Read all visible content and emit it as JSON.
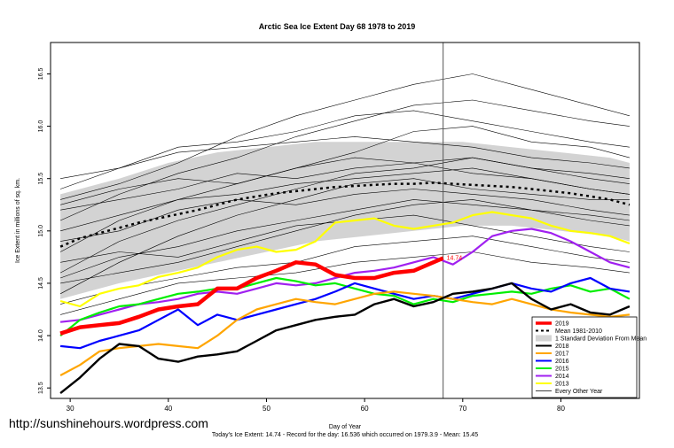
{
  "watermark": "http://sunshinehours.wordpress.com",
  "chart_data": {
    "type": "line",
    "title": "Arctic Sea Ice Extent Day 68 1978 to 2019",
    "xlabel": "Day of Year",
    "ylabel": "Ice Extent in millions of sq. km.",
    "footer": "Today's Ice Extent: 14.74  - Record for the day: 16.536 which occurred on 1979.3.9  - Mean: 15.45",
    "xlim": [
      28,
      88
    ],
    "ylim": [
      13.4,
      16.8
    ],
    "xticks": [
      30,
      40,
      50,
      60,
      70,
      80
    ],
    "yticks": [
      13.5,
      14.0,
      14.5,
      15.0,
      15.5,
      16.0,
      16.5
    ],
    "vline_day": 68,
    "current_label": "14.74",
    "colors": {
      "2019": "#ff0000",
      "mean": "#000000",
      "band": "#d3d3d3",
      "2018": "#000000",
      "2017": "#ffa500",
      "2016": "#0000ff",
      "2015": "#00ee00",
      "2014": "#a020f0",
      "2013": "#ffff00",
      "other": "#000000"
    },
    "legend": {
      "position": "bottom-right",
      "entries": [
        "2019",
        "Mean 1981-2010",
        "1 Standard Deviation From Mean",
        "2018",
        "2017",
        "2016",
        "2015",
        "2014",
        "2013",
        "Every Other Year"
      ]
    },
    "band": {
      "x": [
        29,
        35,
        40,
        45,
        50,
        55,
        60,
        65,
        70,
        75,
        80,
        85,
        87
      ],
      "upper": [
        15.35,
        15.5,
        15.65,
        15.75,
        15.8,
        15.85,
        15.85,
        15.85,
        15.85,
        15.8,
        15.75,
        15.7,
        15.65
      ],
      "lower": [
        14.35,
        14.5,
        14.6,
        14.7,
        14.8,
        14.9,
        14.95,
        15.0,
        15.05,
        15.05,
        15.0,
        14.95,
        14.9
      ]
    },
    "series": [
      {
        "name": "Mean 1981-2010",
        "x": [
          29,
          31,
          33,
          35,
          37,
          39,
          41,
          43,
          45,
          47,
          49,
          51,
          53,
          55,
          57,
          59,
          61,
          63,
          65,
          67,
          69,
          71,
          73,
          75,
          77,
          79,
          81,
          83,
          85,
          87
        ],
        "values": [
          14.85,
          14.93,
          14.98,
          15.03,
          15.08,
          15.12,
          15.16,
          15.2,
          15.25,
          15.3,
          15.33,
          15.36,
          15.38,
          15.4,
          15.42,
          15.43,
          15.44,
          15.45,
          15.45,
          15.46,
          15.45,
          15.44,
          15.43,
          15.42,
          15.4,
          15.38,
          15.36,
          15.33,
          15.3,
          15.25
        ]
      },
      {
        "name": "2013",
        "x": [
          29,
          31,
          33,
          35,
          37,
          39,
          41,
          43,
          45,
          47,
          49,
          51,
          53,
          55,
          57,
          59,
          61,
          63,
          65,
          67,
          69,
          71,
          73,
          75,
          77,
          79,
          81,
          83,
          85,
          87
        ],
        "values": [
          14.33,
          14.28,
          14.4,
          14.45,
          14.48,
          14.56,
          14.6,
          14.65,
          14.75,
          14.82,
          14.85,
          14.8,
          14.82,
          14.9,
          15.08,
          15.1,
          15.12,
          15.05,
          15.02,
          15.05,
          15.08,
          15.15,
          15.18,
          15.15,
          15.12,
          15.05,
          15.0,
          14.98,
          14.95,
          14.88
        ]
      },
      {
        "name": "2014",
        "x": [
          29,
          31,
          33,
          35,
          37,
          39,
          41,
          43,
          45,
          47,
          49,
          51,
          53,
          55,
          57,
          59,
          61,
          63,
          65,
          67,
          69,
          71,
          73,
          75,
          77,
          79,
          81,
          83,
          85,
          87
        ],
        "values": [
          14.13,
          14.15,
          14.2,
          14.25,
          14.3,
          14.32,
          14.35,
          14.4,
          14.42,
          14.4,
          14.45,
          14.5,
          14.48,
          14.5,
          14.55,
          14.6,
          14.62,
          14.65,
          14.7,
          14.75,
          14.68,
          14.8,
          14.95,
          15.0,
          15.02,
          14.98,
          14.9,
          14.8,
          14.7,
          14.65
        ]
      },
      {
        "name": "2015",
        "x": [
          29,
          31,
          33,
          35,
          37,
          39,
          41,
          43,
          45,
          47,
          49,
          51,
          53,
          55,
          57,
          59,
          61,
          63,
          65,
          67,
          69,
          71,
          73,
          75,
          77,
          79,
          81,
          83,
          85,
          87
        ],
        "values": [
          14.0,
          14.15,
          14.22,
          14.28,
          14.3,
          14.35,
          14.4,
          14.42,
          14.45,
          14.45,
          14.5,
          14.55,
          14.52,
          14.48,
          14.5,
          14.45,
          14.4,
          14.38,
          14.3,
          14.35,
          14.32,
          14.38,
          14.4,
          14.42,
          14.4,
          14.45,
          14.48,
          14.42,
          14.45,
          14.35
        ]
      },
      {
        "name": "2016",
        "x": [
          29,
          31,
          33,
          35,
          37,
          39,
          41,
          43,
          45,
          47,
          49,
          51,
          53,
          55,
          57,
          59,
          61,
          63,
          65,
          67,
          69,
          71,
          73,
          75,
          77,
          79,
          81,
          83,
          85,
          87
        ],
        "values": [
          13.9,
          13.88,
          13.95,
          14.0,
          14.05,
          14.15,
          14.25,
          14.1,
          14.2,
          14.15,
          14.2,
          14.25,
          14.3,
          14.35,
          14.42,
          14.5,
          14.45,
          14.4,
          14.35,
          14.38,
          14.35,
          14.4,
          14.45,
          14.5,
          14.45,
          14.42,
          14.5,
          14.55,
          14.45,
          14.42
        ]
      },
      {
        "name": "2017",
        "x": [
          29,
          31,
          33,
          35,
          37,
          39,
          41,
          43,
          45,
          47,
          49,
          51,
          53,
          55,
          57,
          59,
          61,
          63,
          65,
          67,
          69,
          71,
          73,
          75,
          77,
          79,
          81,
          83,
          85,
          87
        ],
        "values": [
          13.62,
          13.72,
          13.85,
          13.88,
          13.9,
          13.92,
          13.9,
          13.88,
          14.0,
          14.15,
          14.25,
          14.3,
          14.35,
          14.32,
          14.3,
          14.35,
          14.4,
          14.42,
          14.4,
          14.38,
          14.35,
          14.32,
          14.3,
          14.35,
          14.3,
          14.25,
          14.22,
          14.2,
          14.18,
          14.2
        ]
      },
      {
        "name": "2018",
        "x": [
          29,
          31,
          33,
          35,
          37,
          39,
          41,
          43,
          45,
          47,
          49,
          51,
          53,
          55,
          57,
          59,
          61,
          63,
          65,
          67,
          69,
          71,
          73,
          75,
          77,
          79,
          81,
          83,
          85,
          87
        ],
        "values": [
          13.45,
          13.6,
          13.78,
          13.92,
          13.9,
          13.78,
          13.75,
          13.8,
          13.82,
          13.85,
          13.95,
          14.05,
          14.1,
          14.15,
          14.18,
          14.2,
          14.3,
          14.35,
          14.28,
          14.32,
          14.4,
          14.42,
          14.45,
          14.5,
          14.35,
          14.25,
          14.3,
          14.22,
          14.2,
          14.28
        ]
      },
      {
        "name": "2019",
        "x": [
          29,
          31,
          33,
          35,
          37,
          39,
          41,
          43,
          45,
          47,
          49,
          51,
          53,
          55,
          57,
          59,
          61,
          63,
          65,
          67,
          68
        ],
        "values": [
          14.02,
          14.08,
          14.1,
          14.12,
          14.18,
          14.25,
          14.28,
          14.3,
          14.45,
          14.45,
          14.55,
          14.62,
          14.7,
          14.68,
          14.58,
          14.55,
          14.55,
          14.6,
          14.62,
          14.7,
          14.74
        ]
      }
    ],
    "other_years": [
      {
        "x": [
          29,
          35,
          41,
          47,
          53,
          59,
          65,
          71,
          77,
          83,
          87
        ],
        "values": [
          15.1,
          15.35,
          15.55,
          15.7,
          15.9,
          16.05,
          16.2,
          16.25,
          16.15,
          16.05,
          16.0
        ]
      },
      {
        "x": [
          29,
          35,
          41,
          47,
          53,
          59,
          65,
          71,
          77,
          83,
          87
        ],
        "values": [
          15.3,
          15.45,
          15.65,
          15.9,
          16.1,
          16.25,
          16.4,
          16.5,
          16.35,
          16.2,
          16.1
        ]
      },
      {
        "x": [
          29,
          35,
          41,
          47,
          53,
          59,
          65,
          71,
          77,
          83,
          87
        ],
        "values": [
          14.8,
          15.1,
          15.3,
          15.45,
          15.6,
          15.75,
          15.95,
          16.0,
          15.85,
          15.8,
          15.7
        ]
      },
      {
        "x": [
          29,
          35,
          41,
          47,
          53,
          59,
          65,
          71,
          77,
          83,
          87
        ],
        "values": [
          15.5,
          15.6,
          15.8,
          15.85,
          15.95,
          16.1,
          16.15,
          16.05,
          15.95,
          15.85,
          15.8
        ]
      },
      {
        "x": [
          29,
          35,
          41,
          47,
          53,
          59,
          65,
          71,
          77,
          83,
          87
        ],
        "values": [
          14.6,
          14.9,
          15.1,
          15.25,
          15.4,
          15.55,
          15.6,
          15.7,
          15.6,
          15.5,
          15.45
        ]
      },
      {
        "x": [
          29,
          35,
          41,
          47,
          53,
          59,
          65,
          71,
          77,
          83,
          87
        ],
        "values": [
          15.2,
          15.3,
          15.4,
          15.55,
          15.5,
          15.6,
          15.65,
          15.55,
          15.5,
          15.4,
          15.35
        ]
      },
      {
        "x": [
          29,
          35,
          41,
          47,
          53,
          59,
          65,
          71,
          77,
          83,
          87
        ],
        "values": [
          14.4,
          14.7,
          14.95,
          15.15,
          15.3,
          15.45,
          15.5,
          15.4,
          15.35,
          15.3,
          15.3
        ]
      },
      {
        "x": [
          29,
          35,
          41,
          47,
          53,
          59,
          65,
          71,
          77,
          83,
          87
        ],
        "values": [
          14.5,
          14.6,
          14.7,
          14.85,
          15.0,
          15.15,
          15.25,
          15.3,
          15.2,
          15.15,
          15.1
        ]
      },
      {
        "x": [
          29,
          35,
          41,
          47,
          53,
          59,
          65,
          71,
          77,
          83,
          87
        ],
        "values": [
          15.0,
          15.15,
          15.3,
          15.35,
          15.45,
          15.5,
          15.55,
          15.6,
          15.5,
          15.4,
          15.35
        ]
      },
      {
        "x": [
          29,
          35,
          41,
          47,
          53,
          59,
          65,
          71,
          77,
          83,
          87
        ],
        "values": [
          14.7,
          14.8,
          14.75,
          14.9,
          15.05,
          15.1,
          15.15,
          15.05,
          14.95,
          14.85,
          14.8
        ]
      },
      {
        "x": [
          29,
          35,
          41,
          47,
          53,
          59,
          65,
          71,
          77,
          83,
          87
        ],
        "values": [
          14.3,
          14.45,
          14.55,
          14.65,
          14.7,
          14.85,
          14.9,
          14.95,
          14.85,
          14.75,
          14.7
        ]
      },
      {
        "x": [
          29,
          35,
          41,
          47,
          53,
          59,
          65,
          71,
          77,
          83,
          87
        ],
        "values": [
          15.25,
          15.4,
          15.5,
          15.45,
          15.6,
          15.7,
          15.65,
          15.7,
          15.6,
          15.55,
          15.5
        ]
      },
      {
        "x": [
          29,
          35,
          41,
          47,
          53,
          59,
          65,
          71,
          77,
          83,
          87
        ],
        "values": [
          14.2,
          14.35,
          14.5,
          14.55,
          14.6,
          14.7,
          14.75,
          14.8,
          14.7,
          14.65,
          14.6
        ]
      },
      {
        "x": [
          29,
          35,
          41,
          47,
          53,
          59,
          65,
          71,
          77,
          83,
          87
        ],
        "values": [
          14.9,
          15.0,
          15.2,
          15.3,
          15.25,
          15.35,
          15.4,
          15.35,
          15.3,
          15.2,
          15.15
        ]
      },
      {
        "x": [
          29,
          35,
          41,
          47,
          53,
          59,
          65,
          71,
          77,
          83,
          87
        ],
        "values": [
          15.4,
          15.6,
          15.75,
          15.8,
          15.85,
          15.9,
          15.85,
          15.8,
          15.7,
          15.65,
          15.6
        ]
      },
      {
        "x": [
          29,
          35,
          41,
          47,
          53,
          59,
          65,
          71,
          77,
          83,
          87
        ],
        "values": [
          14.55,
          14.75,
          14.85,
          15.0,
          15.1,
          15.2,
          15.3,
          15.25,
          15.2,
          15.1,
          15.05
        ]
      }
    ]
  }
}
